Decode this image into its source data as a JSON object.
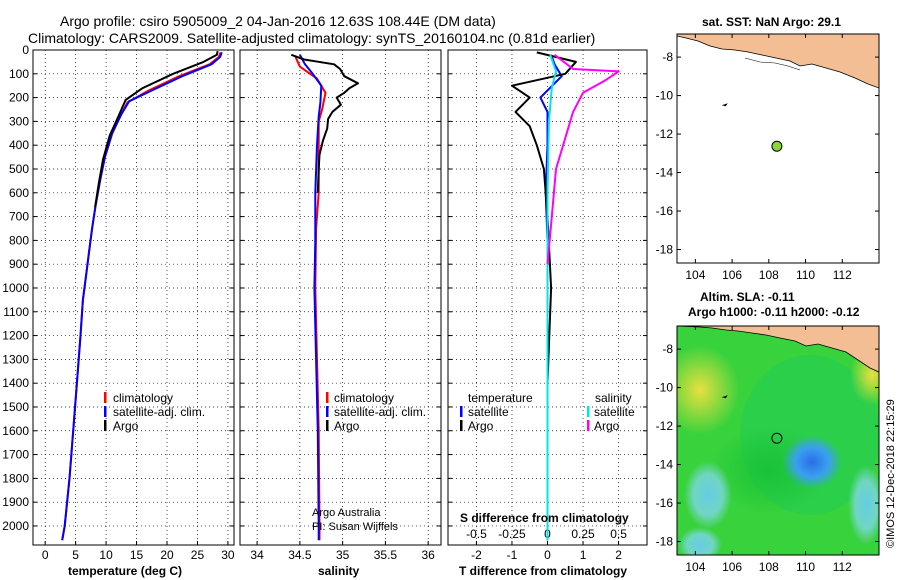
{
  "header": {
    "line1": "Argo profile: csiro 5905009_2 04-Jan-2016 12.63S 108.44E (DM data)",
    "line2": "Climatology: CARS2009. Satellite-adjusted climatology: synTS_20160104.nc (0.81d earlier)"
  },
  "colors": {
    "climatology": "#ff0000",
    "satellite": "#0000ff",
    "argo": "#000000",
    "sat_cyan": "#00e5e5",
    "argo_magenta": "#ff00ff"
  },
  "chart_data": [
    {
      "type": "line",
      "id": "temperature",
      "xlabel": "temperature (deg C)",
      "ylabel": "",
      "xlim": [
        -2,
        31
      ],
      "ylim": [
        2080,
        0
      ],
      "xticks": [
        0,
        5,
        10,
        15,
        20,
        25,
        30
      ],
      "xtick_labels": [
        "0",
        "5",
        "10",
        "15",
        "20",
        "25",
        "30"
      ],
      "yticks": [
        0,
        100,
        200,
        300,
        400,
        500,
        600,
        700,
        800,
        900,
        1000,
        1100,
        1200,
        1300,
        1400,
        1500,
        1600,
        1700,
        1800,
        1900,
        2000
      ],
      "ytick_labels": [
        "0",
        "100",
        "200",
        "300",
        "400",
        "500",
        "600",
        "700",
        "800",
        "900",
        "1000",
        "1100",
        "1200",
        "1300",
        "1400",
        "1500",
        "1600",
        "1700",
        "1800",
        "1900",
        "2000"
      ],
      "legend": [
        "climatology",
        "satellite-adj. clim.",
        "Argo"
      ],
      "series": [
        {
          "name": "climatology",
          "color": "#ff0000",
          "points": [
            [
              28.8,
              10
            ],
            [
              28.5,
              30
            ],
            [
              27,
              60
            ],
            [
              22,
              110
            ],
            [
              17,
              170
            ],
            [
              13.5,
              220
            ],
            [
              12.5,
              270
            ],
            [
              11,
              350
            ],
            [
              9.8,
              450
            ],
            [
              9,
              550
            ],
            [
              8.3,
              650
            ],
            [
              7.7,
              750
            ],
            [
              7.2,
              850
            ],
            [
              6.7,
              950
            ],
            [
              6.2,
              1050
            ],
            [
              5.8,
              1200
            ],
            [
              5.2,
              1400
            ],
            [
              4.6,
              1600
            ],
            [
              4,
              1800
            ],
            [
              3.2,
              2000
            ],
            [
              2.8,
              2060
            ]
          ]
        },
        {
          "name": "satellite-adj. clim.",
          "color": "#0000ff",
          "points": [
            [
              29,
              10
            ],
            [
              28.7,
              30
            ],
            [
              27.3,
              60
            ],
            [
              22.5,
              110
            ],
            [
              17.5,
              170
            ],
            [
              13.8,
              215
            ],
            [
              12.5,
              270
            ],
            [
              11,
              350
            ],
            [
              9.8,
              450
            ],
            [
              9,
              550
            ],
            [
              8.3,
              650
            ],
            [
              7.7,
              750
            ],
            [
              7.2,
              850
            ],
            [
              6.7,
              950
            ],
            [
              6.2,
              1050
            ],
            [
              5.8,
              1200
            ],
            [
              5.2,
              1400
            ],
            [
              4.6,
              1600
            ],
            [
              4,
              1800
            ],
            [
              3.2,
              2000
            ],
            [
              2.8,
              2060
            ]
          ]
        },
        {
          "name": "Argo",
          "color": "#000000",
          "points": [
            [
              28.3,
              5
            ],
            [
              28.2,
              20
            ],
            [
              26,
              50
            ],
            [
              21,
              100
            ],
            [
              16,
              160
            ],
            [
              13.2,
              210
            ],
            [
              12,
              280
            ],
            [
              10.6,
              360
            ],
            [
              9.5,
              460
            ],
            [
              8.8,
              560
            ],
            [
              8.2,
              660
            ]
          ]
        }
      ]
    },
    {
      "type": "line",
      "id": "salinity",
      "xlabel": "salinity",
      "ylabel": "",
      "xlim": [
        33.8,
        36.15
      ],
      "ylim": [
        2080,
        0
      ],
      "xticks": [
        34,
        34.5,
        35,
        35.5,
        36
      ],
      "xtick_labels": [
        "34",
        "34.5",
        "35",
        "35.5",
        "36"
      ],
      "legend": [
        "climatology",
        "satellite-adj. clim.",
        "Argo"
      ],
      "annotation": [
        "Argo Australia",
        "PI: Susan Wijffels"
      ],
      "series": [
        {
          "name": "climatology",
          "color": "#ff0000",
          "points": [
            [
              34.45,
              30
            ],
            [
              34.5,
              70
            ],
            [
              34.7,
              120
            ],
            [
              34.8,
              180
            ],
            [
              34.76,
              250
            ],
            [
              34.72,
              300
            ],
            [
              34.72,
              600
            ],
            [
              34.69,
              750
            ],
            [
              34.68,
              1000
            ],
            [
              34.7,
              1300
            ],
            [
              34.72,
              1600
            ],
            [
              34.73,
              2000
            ],
            [
              34.73,
              2060
            ]
          ]
        },
        {
          "name": "satellite-adj. clim.",
          "color": "#0000ff",
          "points": [
            [
              34.5,
              20
            ],
            [
              34.56,
              60
            ],
            [
              34.65,
              100
            ],
            [
              34.75,
              150
            ],
            [
              34.74,
              220
            ],
            [
              34.72,
              280
            ],
            [
              34.7,
              400
            ],
            [
              34.68,
              600
            ],
            [
              34.68,
              800
            ],
            [
              34.67,
              1000
            ],
            [
              34.69,
              1300
            ],
            [
              34.71,
              1600
            ],
            [
              34.72,
              2000
            ],
            [
              34.72,
              2060
            ]
          ]
        },
        {
          "name": "Argo",
          "color": "#000000",
          "points": [
            [
              34.4,
              20
            ],
            [
              34.55,
              40
            ],
            [
              34.9,
              60
            ],
            [
              34.97,
              80
            ],
            [
              35.02,
              110
            ],
            [
              35.18,
              140
            ],
            [
              35.08,
              160
            ],
            [
              35.02,
              180
            ],
            [
              34.93,
              200
            ],
            [
              34.98,
              230
            ],
            [
              34.88,
              260
            ],
            [
              34.83,
              290
            ],
            [
              34.82,
              330
            ],
            [
              34.77,
              380
            ],
            [
              34.73,
              440
            ],
            [
              34.72,
              500
            ],
            [
              34.71,
              600
            ]
          ]
        }
      ]
    },
    {
      "type": "line",
      "id": "differences",
      "xlabel": "T difference from climatology",
      "ylabel": "",
      "xlim": [
        -2.8,
        2.8
      ],
      "ylim": [
        2080,
        0
      ],
      "xticks": [
        -2,
        -1,
        0,
        1,
        2
      ],
      "xtick_labels": [
        "-2",
        "-1",
        "0",
        "1",
        "2"
      ],
      "sxticks": [
        -0.5,
        -0.25,
        0,
        0.25,
        0.5
      ],
      "sxtick_labels": [
        "-0.5",
        "-0.25",
        "0",
        "0.25",
        "0.5"
      ],
      "sxlabel": "S difference from climatology",
      "legend_left_title": "temperature",
      "legend_right_title": "salinity",
      "legend_left": [
        "satellite",
        "Argo"
      ],
      "legend_right": [
        "satellite",
        "Argo"
      ],
      "series": [
        {
          "name": "T satellite",
          "color": "#0000ff",
          "points": [
            [
              0.1,
              20
            ],
            [
              0.2,
              60
            ],
            [
              0.4,
              110
            ],
            [
              -0.2,
              200
            ],
            [
              0,
              260
            ],
            [
              0,
              400
            ],
            [
              -0.05,
              600
            ],
            [
              0,
              800
            ],
            [
              0,
              1200
            ],
            [
              0,
              1600
            ],
            [
              0,
              2060
            ]
          ]
        },
        {
          "name": "T Argo",
          "color": "#000000",
          "points": [
            [
              -0.3,
              10
            ],
            [
              0.8,
              50
            ],
            [
              0.5,
              100
            ],
            [
              -1,
              150
            ],
            [
              -0.5,
              200
            ],
            [
              -0.9,
              260
            ],
            [
              -0.5,
              320
            ],
            [
              -0.3,
              400
            ],
            [
              -0.1,
              500
            ],
            [
              0,
              700
            ],
            [
              0.1,
              1000
            ],
            [
              0,
              1400
            ],
            [
              0,
              1900
            ],
            [
              0,
              2060
            ]
          ]
        },
        {
          "name": "S satellite",
          "color": "#00e5e5",
          "points": [
            [
              0.02,
              20
            ],
            [
              0.06,
              90
            ],
            [
              0.03,
              160
            ],
            [
              0.01,
              300
            ],
            [
              0,
              600
            ],
            [
              0,
              1000
            ],
            [
              0,
              1500
            ],
            [
              0,
              2060
            ]
          ]
        },
        {
          "name": "S Argo",
          "color": "#ff00ff",
          "points": [
            [
              0.05,
              20
            ],
            [
              0.18,
              80
            ],
            [
              0.5,
              90
            ],
            [
              0.4,
              130
            ],
            [
              0.25,
              180
            ],
            [
              0.18,
              260
            ],
            [
              0.06,
              500
            ],
            [
              0.03,
              700
            ],
            [
              0,
              900
            ]
          ]
        }
      ]
    },
    {
      "type": "scatter",
      "id": "map_sst",
      "title": "sat. SST: NaN Argo: 29.1",
      "xlim": [
        103,
        114
      ],
      "ylim": [
        -18.7,
        -6.8
      ],
      "xticks": [
        104,
        106,
        108,
        110,
        112
      ],
      "xtick_labels": [
        "104",
        "106",
        "108",
        "110",
        "112"
      ],
      "yticks": [
        -8,
        -10,
        -12,
        -14,
        -16,
        -18
      ],
      "ytick_labels": [
        "-8",
        "-10",
        "-12",
        "-14",
        "-16",
        "-18"
      ],
      "profile": {
        "lon": 108.44,
        "lat": -12.63
      },
      "previous": {
        "lon": 105.6,
        "lat": -10.5
      }
    },
    {
      "type": "heatmap",
      "id": "map_sla",
      "title": "Altim. SLA: -0.11",
      "subtitle": "Argo h1000: -0.11 h2000: -0.12",
      "xlim": [
        103,
        114
      ],
      "ylim": [
        -18.7,
        -6.8
      ],
      "xticks": [
        104,
        106,
        108,
        110,
        112
      ],
      "xtick_labels": [
        "104",
        "106",
        "108",
        "110",
        "112"
      ],
      "yticks": [
        -8,
        -10,
        -12,
        -14,
        -16,
        -18
      ],
      "ytick_labels": [
        "-8",
        "-10",
        "-12",
        "-14",
        "-16",
        "-18"
      ],
      "profile": {
        "lon": 108.44,
        "lat": -12.63
      },
      "previous": {
        "lon": 105.6,
        "lat": -10.5
      },
      "credit": "©IMOS 12-Dec-2018 22:15:29"
    }
  ]
}
